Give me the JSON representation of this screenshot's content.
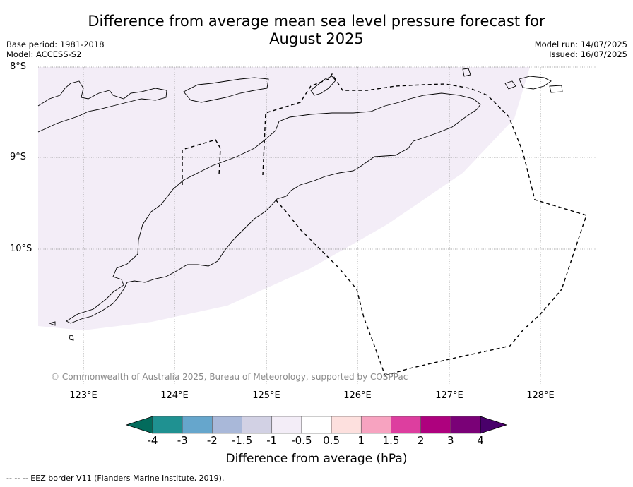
{
  "title_line1": "Difference from average mean sea level pressure forecast for",
  "title_line2": "August 2025",
  "base_period": "Base period: 1981-2018",
  "model": "Model: ACCESS-S2",
  "model_run": "Model run: 14/07/2025",
  "issued": "Issued: 16/07/2025",
  "latitude_labels": [
    "8°S",
    "9°S",
    "10°S"
  ],
  "longitude_labels": [
    "123°E",
    "124°E",
    "125°E",
    "126°E",
    "127°E",
    "128°E"
  ],
  "credit": "© Commonwealth of Australia 2025, Bureau of Meteorology, supported by COSPPac",
  "colorbar": {
    "title": "Difference from average (hPa)",
    "tick_labels": [
      "-4",
      "-3",
      "-2",
      "-1.5",
      "-1",
      "-0.5",
      "0.5",
      "1",
      "1.5",
      "2",
      "3",
      "4"
    ],
    "colors": [
      "#1f9191",
      "#66a6cc",
      "#a9b8d9",
      "#d2d1e4",
      "#f3edf7",
      "#ffffff",
      "#fde0de",
      "#f7a3c0",
      "#dd3e9f",
      "#ae017e",
      "#7a0177"
    ],
    "under_color": "#036b5c",
    "over_color": "#49006a"
  },
  "map_fill_color": "#f3edf7",
  "legend_footnote": "-- -- -- EEZ border V11 (Flanders Marine Institute, 2019)."
}
